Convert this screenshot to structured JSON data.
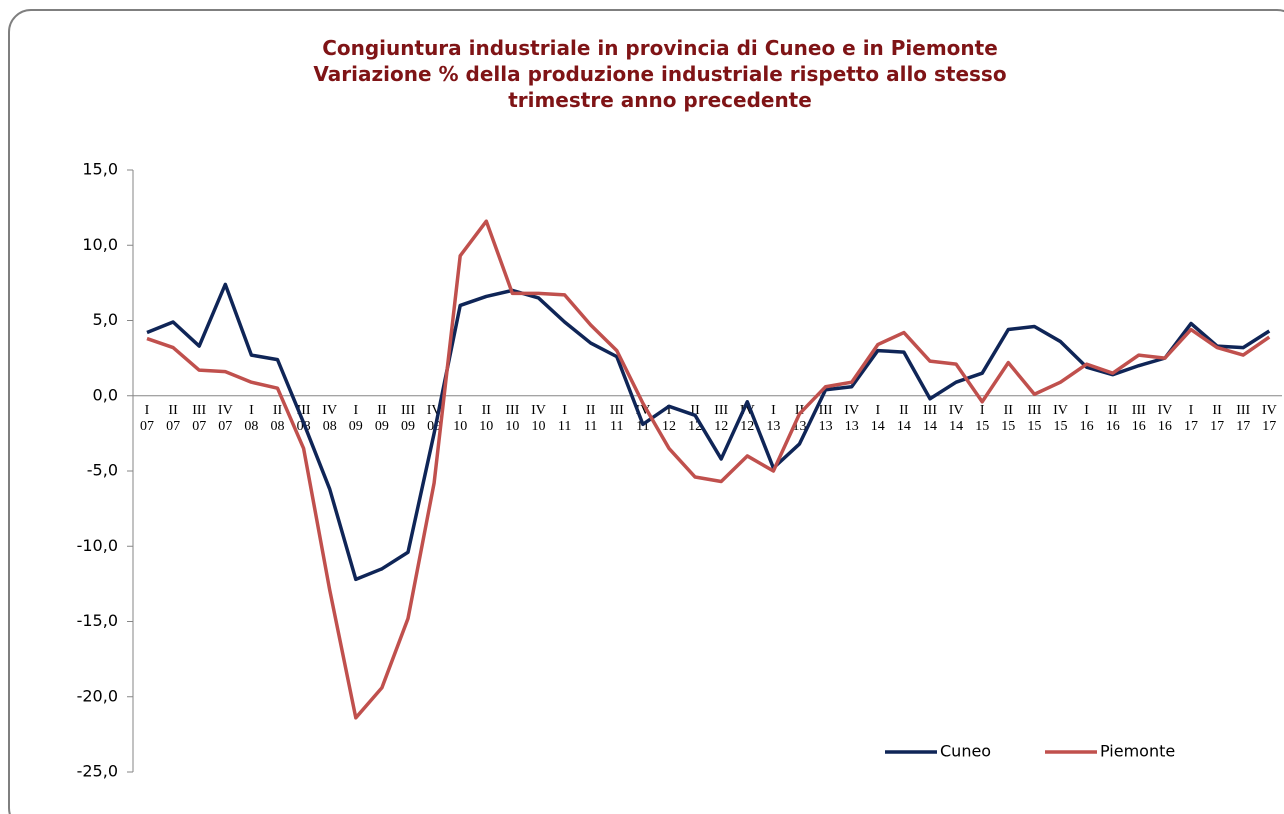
{
  "chart_data": {
    "type": "line",
    "title": [
      "Congiuntura industriale in provincia di Cuneo e in Piemonte",
      "Variazione % della produzione industriale rispetto allo stesso",
      "trimestre anno precedente"
    ],
    "categories": [
      "I 07",
      "II 07",
      "III 07",
      "IV 07",
      "I 08",
      "II 08",
      "III 08",
      "IV 08",
      "I 09",
      "II 09",
      "III 09",
      "IV 09",
      "I 10",
      "II 10",
      "III 10",
      "IV 10",
      "I 11",
      "II 11",
      "III 11",
      "IV 11",
      "I 12",
      "II 12",
      "III 12",
      "IV 12",
      "I 13",
      "II 13",
      "III 13",
      "IV 13",
      "I 14",
      "II 14",
      "III 14",
      "IV 14",
      "I 15",
      "II 15",
      "III 15",
      "IV 15",
      "I 16",
      "II 16",
      "III 16",
      "IV 16",
      "I 17",
      "II 17",
      "III 17",
      "IV 17"
    ],
    "series": [
      {
        "name": "Cuneo",
        "color": "#0f2557",
        "values": [
          4.2,
          4.9,
          3.3,
          7.4,
          2.7,
          2.4,
          -1.8,
          -6.2,
          -12.2,
          -11.5,
          -10.4,
          -2.5,
          6.0,
          6.6,
          7.0,
          6.5,
          4.9,
          3.5,
          2.6,
          -1.9,
          -0.7,
          -1.3,
          -4.2,
          -0.4,
          -4.8,
          -3.2,
          0.4,
          0.6,
          3.0,
          2.9,
          -0.2,
          0.9,
          1.5,
          4.4,
          4.6,
          3.6,
          1.9,
          1.4,
          2.0,
          2.5,
          4.8,
          3.3,
          3.2,
          4.3
        ]
      },
      {
        "name": "Piemonte",
        "color": "#c0504d",
        "values": [
          3.8,
          3.2,
          1.7,
          1.6,
          0.9,
          0.5,
          -3.5,
          -12.9,
          -21.4,
          -19.4,
          -14.8,
          -5.8,
          9.3,
          11.6,
          6.8,
          6.8,
          6.7,
          4.7,
          3.0,
          -0.5,
          -3.5,
          -5.4,
          -5.7,
          -4.0,
          -5.0,
          -1.2,
          0.6,
          0.9,
          3.4,
          4.2,
          2.3,
          2.1,
          -0.4,
          2.2,
          0.1,
          0.9,
          2.1,
          1.5,
          2.7,
          2.5,
          4.4,
          3.2,
          2.7,
          3.9
        ]
      }
    ],
    "ylim": [
      -25,
      15
    ],
    "yticks": [
      {
        "value": -25,
        "label": "-25,0"
      },
      {
        "value": -20,
        "label": "-20,0"
      },
      {
        "value": -15,
        "label": "-15,0"
      },
      {
        "value": -10,
        "label": "-10,0"
      },
      {
        "value": -5,
        "label": "-5,0"
      },
      {
        "value": 0,
        "label": "0,0"
      },
      {
        "value": 5,
        "label": "5,0"
      },
      {
        "value": 10,
        "label": "10,0"
      },
      {
        "value": 15,
        "label": "15,0"
      }
    ],
    "legend": "bottom-right"
  }
}
